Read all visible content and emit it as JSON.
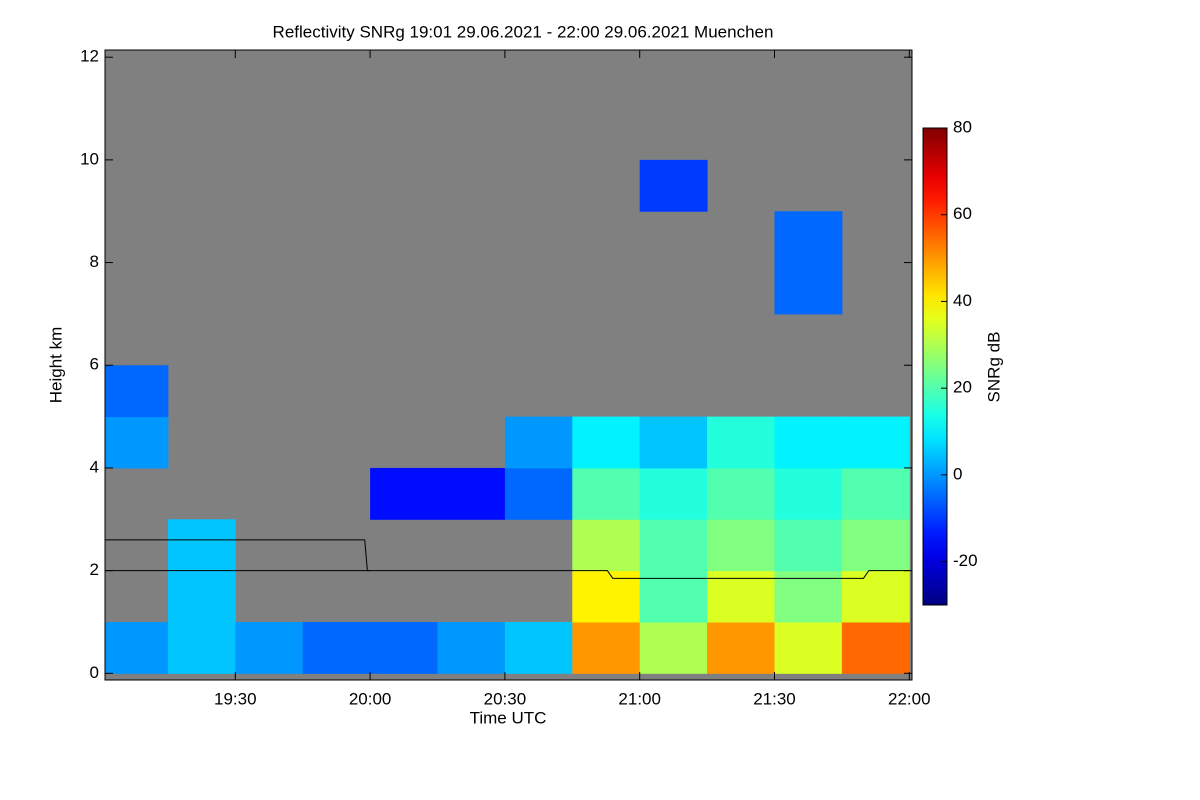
{
  "chart_data": {
    "type": "heatmap",
    "title": "Reflectivity SNRg   19:01 29.06.2021 - 22:00 29.06.2021 Muenchen",
    "x_label": "Time UTC",
    "y_label": "Height km",
    "colorbar_label": "SNRg dB",
    "background_color": "#808080",
    "colormap": "jet",
    "xlim": [
      19.0167,
      22.01
    ],
    "ylim": [
      -0.13,
      12.14
    ],
    "xticks": [
      {
        "value": 19.5,
        "label": "19:30"
      },
      {
        "value": 20,
        "label": "20:00"
      },
      {
        "value": 20.5,
        "label": "20:30"
      },
      {
        "value": 21,
        "label": "21:00"
      },
      {
        "value": 21.5,
        "label": "21:30"
      },
      {
        "value": 22,
        "label": "22:00"
      }
    ],
    "yticks": [
      0,
      2,
      4,
      6,
      8,
      10,
      12
    ],
    "clim": [
      -30,
      80
    ],
    "cticks": [
      -20,
      0,
      20,
      40,
      60,
      80
    ],
    "x_edges": [
      19.0167,
      19.25,
      19.5,
      19.75,
      20,
      20.25,
      20.5,
      20.75,
      21,
      21.25,
      21.5,
      21.75,
      22
    ],
    "y_edges": [
      0,
      1,
      2,
      3,
      4,
      5,
      6,
      7,
      8,
      9,
      10,
      11,
      12
    ],
    "z": [
      [
        0,
        5,
        0,
        -5,
        -5,
        0,
        5,
        50,
        30,
        50,
        35,
        55
      ],
      [
        null,
        5,
        null,
        null,
        null,
        null,
        null,
        40,
        20,
        35,
        25,
        35
      ],
      [
        null,
        5,
        null,
        null,
        null,
        null,
        null,
        30,
        20,
        25,
        20,
        25
      ],
      [
        null,
        null,
        null,
        null,
        -15,
        -15,
        -5,
        20,
        15,
        20,
        15,
        20
      ],
      [
        0,
        null,
        null,
        null,
        null,
        null,
        0,
        10,
        5,
        15,
        10,
        10
      ],
      [
        -5,
        null,
        null,
        null,
        null,
        null,
        null,
        null,
        null,
        null,
        null,
        null
      ],
      [
        null,
        null,
        null,
        null,
        null,
        null,
        null,
        null,
        null,
        null,
        null,
        null
      ],
      [
        null,
        null,
        null,
        null,
        null,
        null,
        null,
        null,
        null,
        null,
        -5,
        null
      ],
      [
        null,
        null,
        null,
        null,
        null,
        null,
        null,
        null,
        null,
        null,
        -5,
        null
      ],
      [
        null,
        null,
        null,
        null,
        null,
        null,
        null,
        null,
        -10,
        null,
        null,
        null
      ],
      [
        null,
        null,
        null,
        null,
        null,
        null,
        null,
        null,
        null,
        null,
        null,
        null
      ],
      [
        null,
        null,
        null,
        null,
        null,
        null,
        null,
        null,
        null,
        null,
        null,
        null
      ]
    ],
    "lines": [
      {
        "color": "#000000",
        "x": [
          19.0167,
          19.98,
          19.99,
          20.0
        ],
        "y": [
          2.6,
          2.6,
          2.0,
          2.0
        ]
      },
      {
        "color": "#000000",
        "x": [
          19.0167,
          20.88,
          20.9,
          21.83,
          21.85,
          22.0
        ],
        "y": [
          2.0,
          2.0,
          1.85,
          1.85,
          2.0,
          2.0
        ]
      }
    ]
  }
}
